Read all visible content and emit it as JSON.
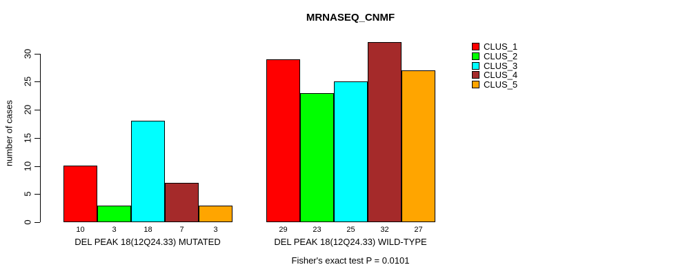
{
  "chart_data": {
    "type": "bar",
    "title": "MRNASEQ_CNMF",
    "ylabel": "number of cases",
    "xlabel": "",
    "ylim": [
      0,
      30
    ],
    "yticks": [
      0,
      5,
      10,
      15,
      20,
      25,
      30
    ],
    "grid": false,
    "legend_position": "top-right",
    "categories": [
      "CLUS_1",
      "CLUS_2",
      "CLUS_3",
      "CLUS_4",
      "CLUS_5"
    ],
    "series_colors": [
      "#FF0000",
      "#00FF00",
      "#00FFFF",
      "#A52A2A",
      "#FFA500"
    ],
    "groups": [
      {
        "label": "DEL PEAK 18(12Q24.33) MUTATED",
        "values": [
          10,
          3,
          18,
          7,
          3
        ]
      },
      {
        "label": "DEL PEAK 18(12Q24.33) WILD-TYPE",
        "values": [
          29,
          23,
          25,
          32,
          27
        ]
      }
    ],
    "bar_value_labels": [
      [
        10,
        3,
        18,
        7,
        3
      ],
      [
        29,
        23,
        25,
        32,
        27
      ]
    ],
    "legend": [
      {
        "label": "CLUS_1",
        "color": "#FF0000"
      },
      {
        "label": "CLUS_2",
        "color": "#00FF00"
      },
      {
        "label": "CLUS_3",
        "color": "#00FFFF"
      },
      {
        "label": "CLUS_4",
        "color": "#A52A2A"
      },
      {
        "label": "CLUS_5",
        "color": "#FFA500"
      }
    ],
    "annotation": "Fisher's exact test P = 0.0101",
    "colors": {
      "background": "#ffffff",
      "axis": "#000000",
      "text": "#000000",
      "bar_border": "#000000"
    }
  }
}
